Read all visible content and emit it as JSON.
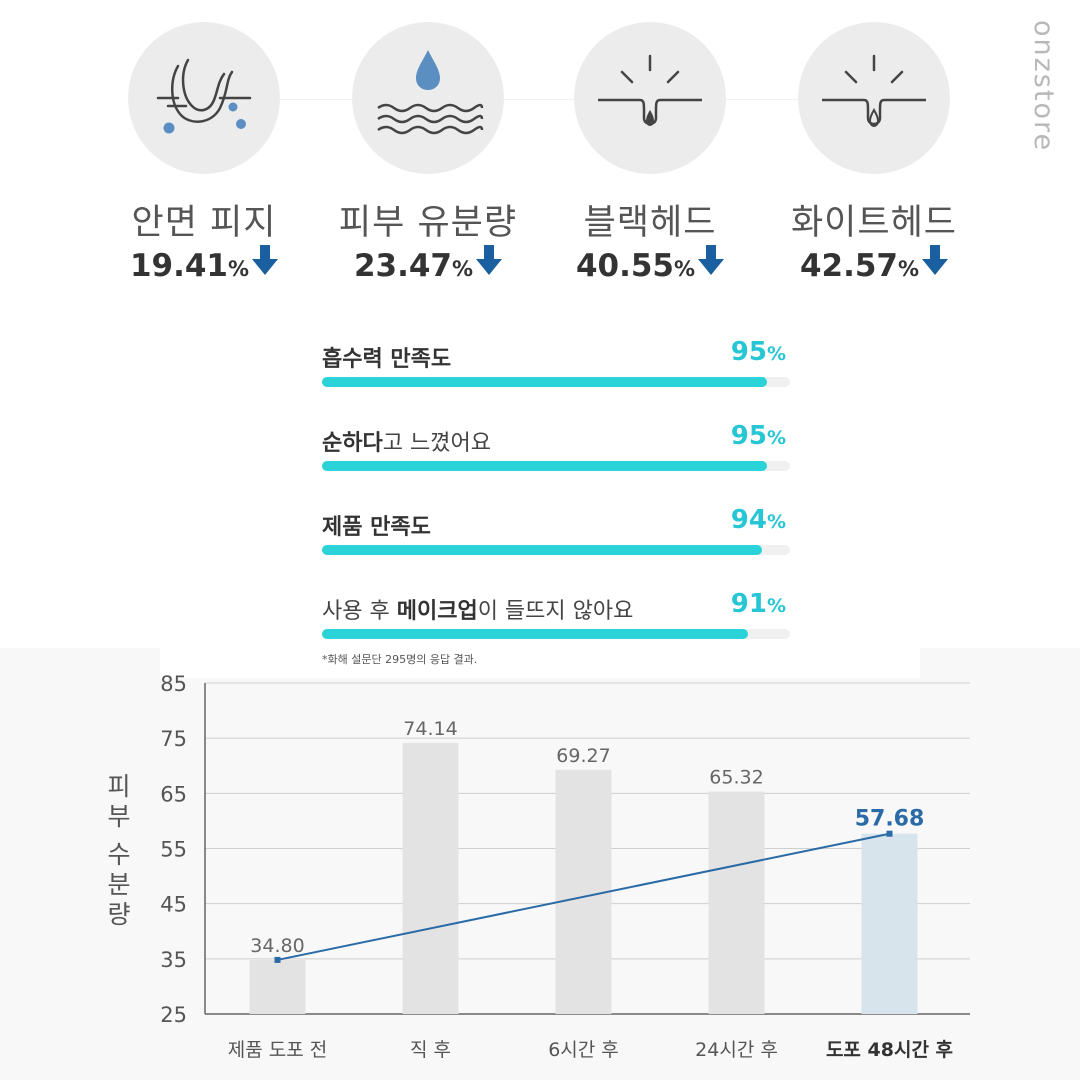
{
  "brand": "onzstore",
  "metrics": [
    {
      "icon": "pore-sebum-icon",
      "label": "안면 피지",
      "value": "19.41",
      "unit": "%"
    },
    {
      "icon": "water-drop-waves-icon",
      "label": "피부 유분량",
      "value": "23.47",
      "unit": "%"
    },
    {
      "icon": "pore-blackhead-icon",
      "label": "블랙헤드",
      "value": "40.55",
      "unit": "%"
    },
    {
      "icon": "pore-whitehead-icon",
      "label": "화이트헤드",
      "value": "42.57",
      "unit": "%"
    }
  ],
  "survey": [
    {
      "label_bold": "흡수력 만족도",
      "label_rest": "",
      "value": 95,
      "value_text": "95",
      "unit": "%"
    },
    {
      "label_bold": "순하다",
      "label_rest": "고 느꼈어요",
      "value": 95,
      "value_text": "95",
      "unit": "%"
    },
    {
      "label_bold": "제품 만족도",
      "label_rest": "",
      "value": 94,
      "value_text": "94",
      "unit": "%"
    },
    {
      "label_pre": "사용 후 ",
      "label_bold": "메이크업",
      "label_rest": "이 들뜨지 않아요",
      "value": 91,
      "value_text": "91",
      "unit": "%"
    }
  ],
  "footnote": "*화해 설문단 295명의 응답 결과.",
  "colors": {
    "accent": "#26c6d4",
    "bar_fill": "#29d3d7",
    "arrow": "#1a5fa0",
    "line": "#2a6aa7",
    "bar_gray": "#e3e3e3",
    "bar_highlight": "#d7e4ec"
  },
  "chart_data": {
    "type": "bar",
    "ylabel": "피부 수분량",
    "categories": [
      "제품 도포 전",
      "직 후",
      "6시간 후",
      "24시간 후",
      "도포 48시간 후"
    ],
    "values": [
      34.8,
      74.14,
      69.27,
      65.32,
      57.68
    ],
    "value_labels": [
      "34.80",
      "74.14",
      "69.27",
      "65.32",
      "57.68"
    ],
    "highlight_index": 4,
    "ylim": [
      25,
      85
    ],
    "yticks": [
      25,
      35,
      45,
      55,
      65,
      75,
      85
    ],
    "grid": true,
    "line": {
      "from_index": 0,
      "to_index": 4
    }
  }
}
